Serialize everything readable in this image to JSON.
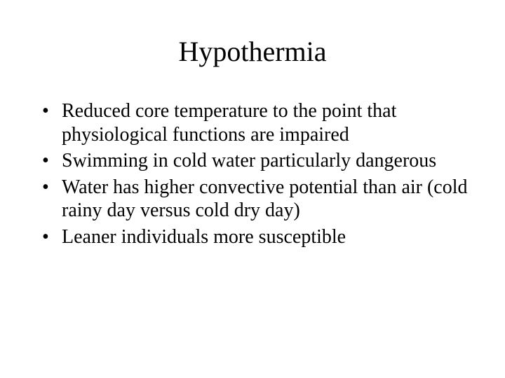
{
  "slide": {
    "title": "Hypothermia",
    "bullets": [
      "Reduced core temperature to the point that physiological functions are impaired",
      "Swimming in cold water particularly dangerous",
      "Water has higher convective potential than air (cold rainy day versus cold dry day)",
      "Leaner individuals more susceptible"
    ]
  },
  "style": {
    "background_color": "#ffffff",
    "text_color": "#000000",
    "font_family": "Times New Roman",
    "title_fontsize": 40,
    "body_fontsize": 28,
    "bullet_char": "•"
  }
}
